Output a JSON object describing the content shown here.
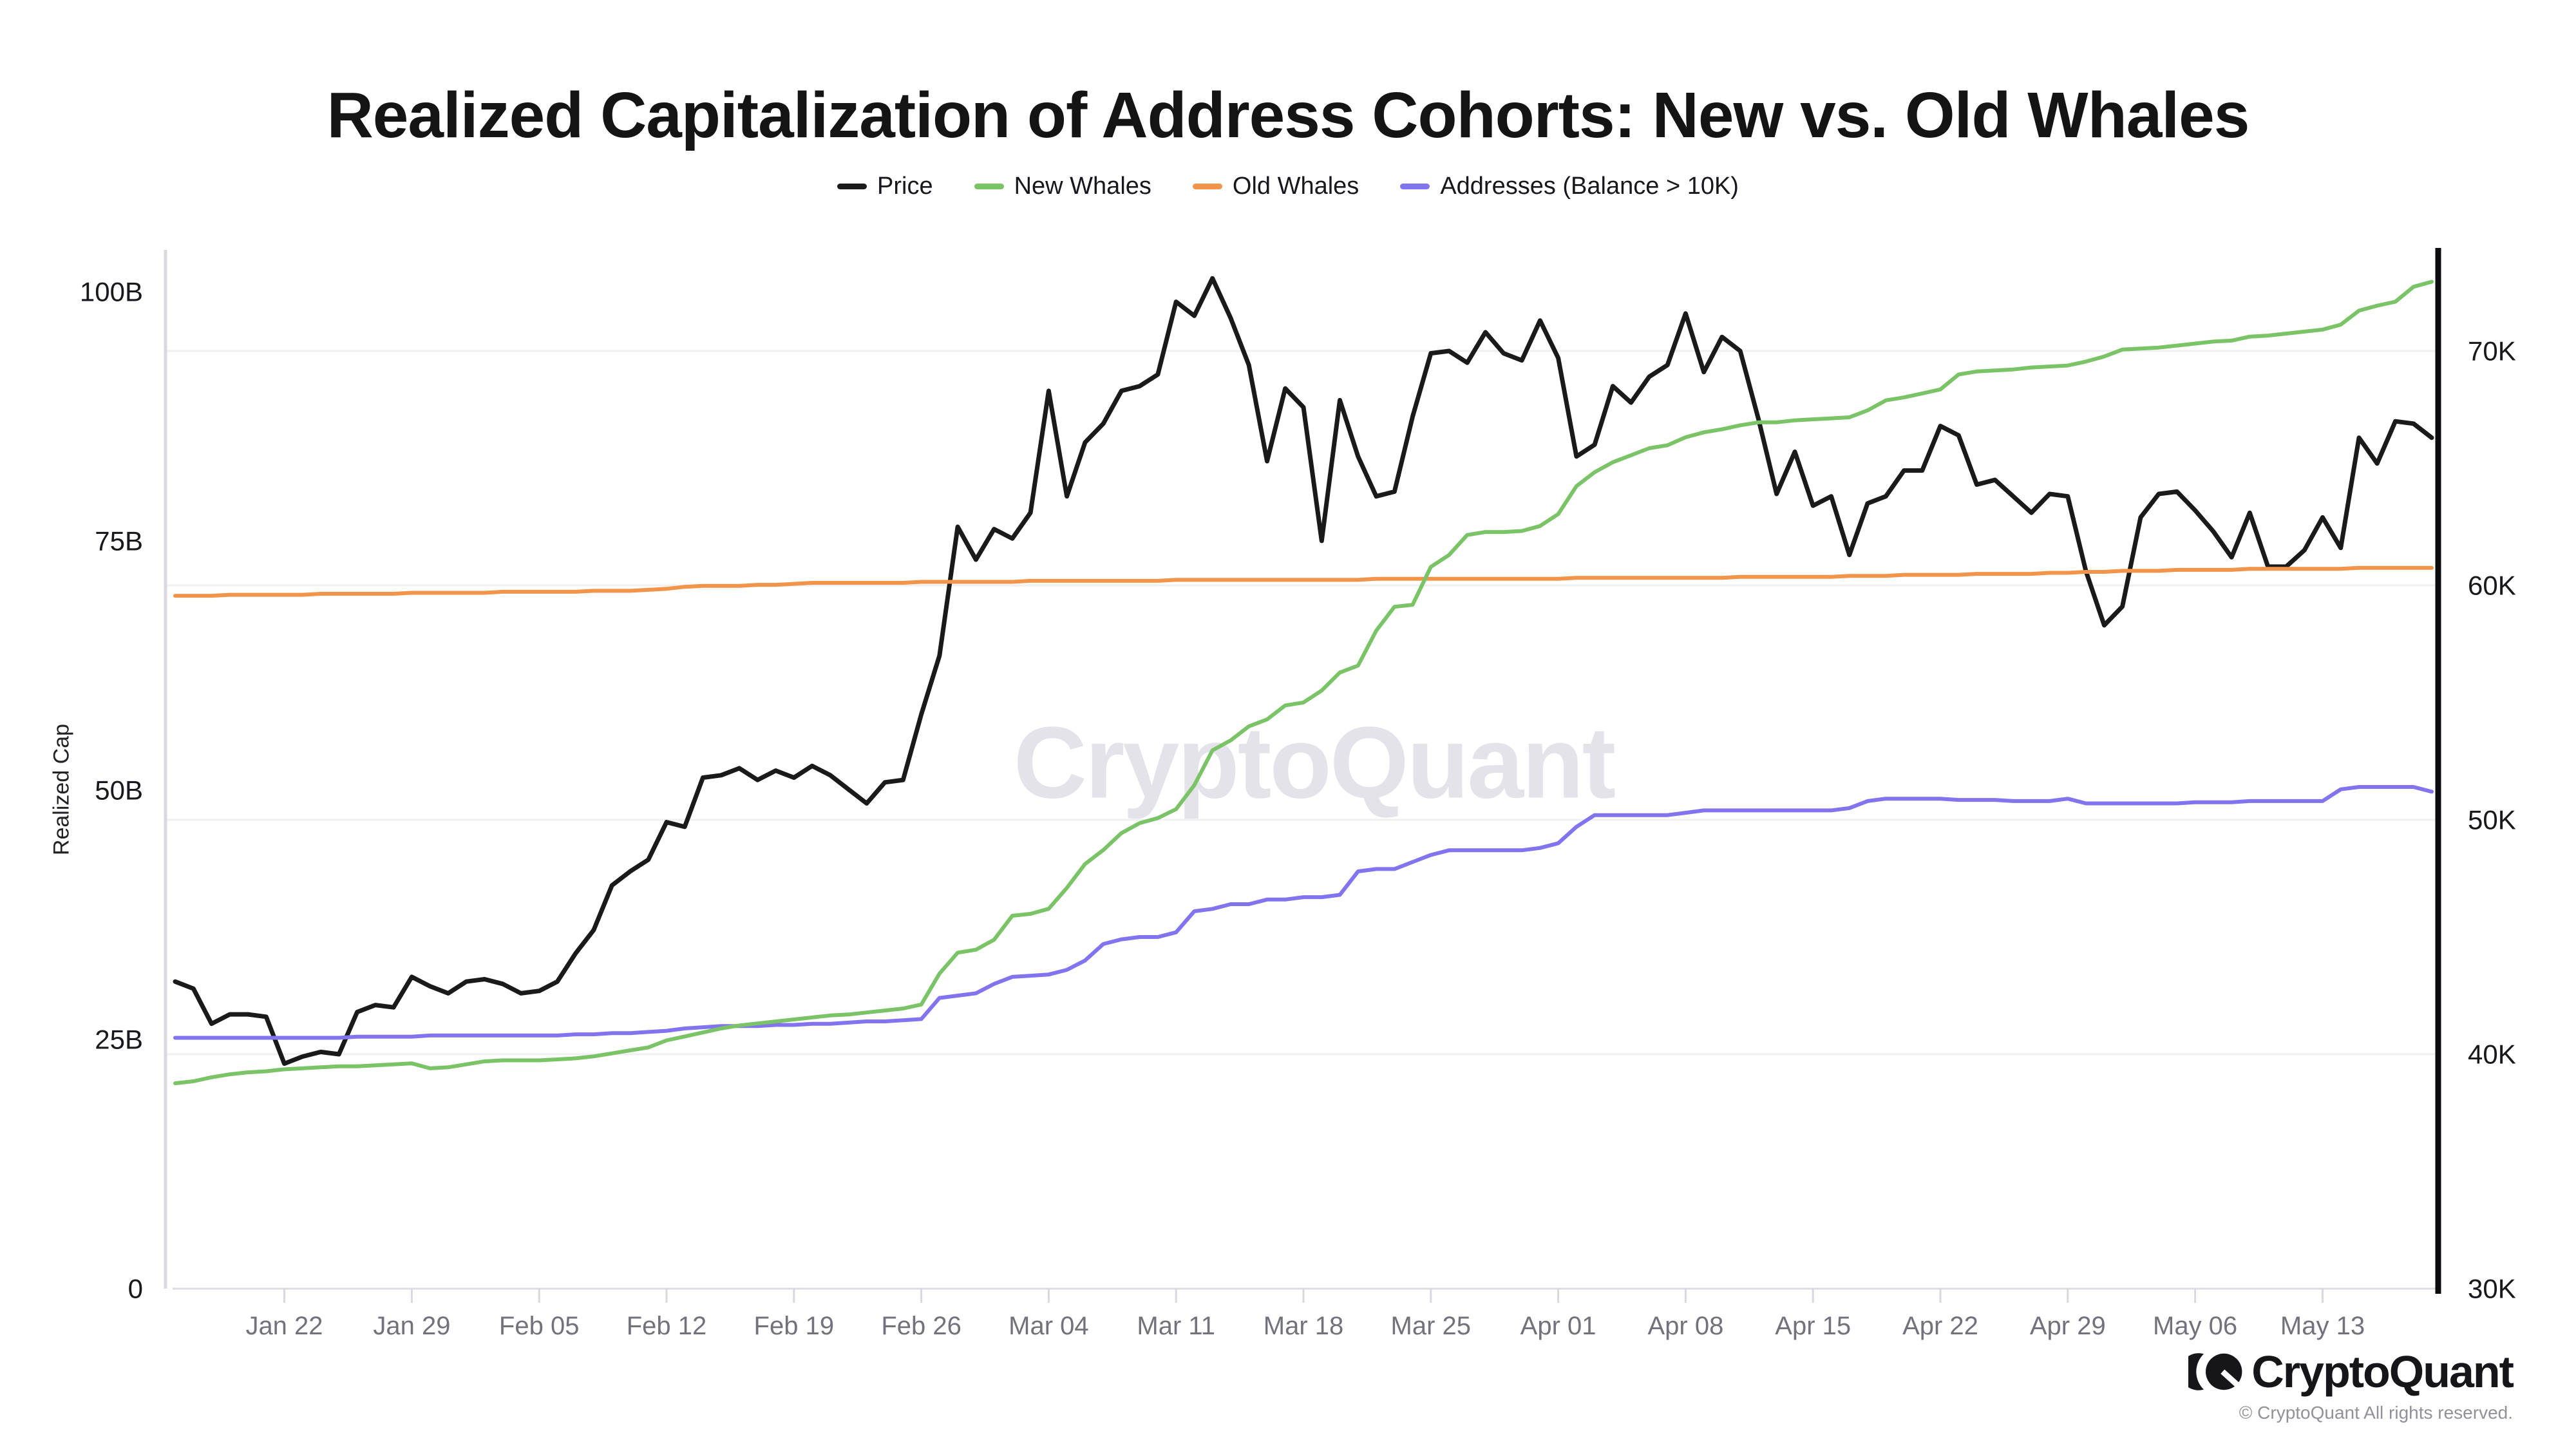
{
  "header": {
    "title": "Realized Capitalization of Address Cohorts: New vs. Old Whales"
  },
  "legend": {
    "items": [
      {
        "label": "Price",
        "color": "#1a1a1a"
      },
      {
        "label": "New Whales",
        "color": "#7ac467"
      },
      {
        "label": "Old Whales",
        "color": "#f2944a"
      },
      {
        "label": "Addresses (Balance > 10K)",
        "color": "#8273ee"
      }
    ]
  },
  "watermark": {
    "text": "CryptoQuant",
    "color": "#e3e3e9"
  },
  "footer": {
    "brand": "CryptoQuant",
    "copyright": "© CryptoQuant All rights reserved."
  },
  "chart_data": {
    "type": "line",
    "title": "Realized Capitalization of Address Cohorts: New vs. Old Whales",
    "ylabel_left": "Realized Cap",
    "x_start_date": "Jan 16",
    "x_end_date": "May 19",
    "grid": "horizontal-only",
    "legend_position": "top-center",
    "x_ticks": [
      {
        "index": 6,
        "label": "Jan 22"
      },
      {
        "index": 13,
        "label": "Jan 29"
      },
      {
        "index": 20,
        "label": "Feb 05"
      },
      {
        "index": 27,
        "label": "Feb 12"
      },
      {
        "index": 34,
        "label": "Feb 19"
      },
      {
        "index": 41,
        "label": "Feb 26"
      },
      {
        "index": 48,
        "label": "Mar 04"
      },
      {
        "index": 55,
        "label": "Mar 11"
      },
      {
        "index": 62,
        "label": "Mar 18"
      },
      {
        "index": 69,
        "label": "Mar 25"
      },
      {
        "index": 76,
        "label": "Apr 01"
      },
      {
        "index": 83,
        "label": "Apr 08"
      },
      {
        "index": 90,
        "label": "Apr 15"
      },
      {
        "index": 97,
        "label": "Apr 22"
      },
      {
        "index": 104,
        "label": "Apr 29"
      },
      {
        "index": 111,
        "label": "May 06"
      },
      {
        "index": 118,
        "label": "May 13"
      }
    ],
    "left_axis": {
      "min": 0,
      "max": 100,
      "unit": "B",
      "ticks": [
        {
          "value": 0,
          "label": "0"
        },
        {
          "value": 25,
          "label": "25B"
        },
        {
          "value": 50,
          "label": "50B"
        },
        {
          "value": 75,
          "label": "75B"
        },
        {
          "value": 100,
          "label": "100B"
        }
      ]
    },
    "right_axis": {
      "min": 30,
      "max": 70,
      "unit": "K",
      "ticks": [
        {
          "value": 30,
          "label": "30K"
        },
        {
          "value": 40,
          "label": "40K"
        },
        {
          "value": 50,
          "label": "50K"
        },
        {
          "value": 60,
          "label": "60K"
        },
        {
          "value": 70,
          "label": "70K"
        }
      ],
      "gridline_values": [
        40,
        50,
        60,
        70
      ]
    },
    "series": [
      {
        "name": "Price",
        "axis": "right",
        "color": "#1a1a1a",
        "width": 7,
        "values": [
          43.1,
          42.8,
          41.3,
          41.7,
          41.7,
          41.6,
          39.6,
          39.9,
          40.1,
          40.0,
          41.8,
          42.1,
          42.0,
          43.3,
          42.9,
          42.6,
          43.1,
          43.2,
          43.0,
          42.6,
          42.7,
          43.1,
          44.3,
          45.3,
          47.2,
          47.8,
          48.3,
          49.9,
          49.7,
          51.8,
          51.9,
          52.2,
          51.7,
          52.1,
          51.8,
          52.3,
          51.9,
          51.3,
          50.7,
          51.6,
          51.7,
          54.5,
          57.0,
          62.5,
          61.1,
          62.4,
          62.0,
          63.1,
          68.3,
          63.8,
          66.1,
          66.9,
          68.3,
          68.5,
          69.0,
          72.1,
          71.5,
          73.1,
          71.4,
          69.4,
          65.3,
          68.4,
          67.6,
          61.9,
          67.9,
          65.5,
          63.8,
          64.0,
          67.2,
          69.9,
          70.0,
          69.5,
          70.8,
          69.9,
          69.6,
          71.3,
          69.7,
          65.5,
          66.0,
          68.5,
          67.8,
          68.9,
          69.4,
          71.6,
          69.1,
          70.6,
          70.0,
          67.1,
          63.9,
          65.7,
          63.4,
          63.8,
          61.3,
          63.5,
          63.8,
          64.9,
          64.9,
          66.8,
          66.4,
          64.3,
          64.5,
          63.8,
          63.1,
          63.9,
          63.8,
          60.6,
          58.3,
          59.1,
          62.9,
          63.9,
          64.0,
          63.2,
          62.3,
          61.2,
          63.1,
          60.8,
          60.8,
          61.5,
          62.9,
          61.6,
          66.3,
          65.2,
          67.0,
          66.9,
          66.3
        ]
      },
      {
        "name": "Old Whales",
        "axis": "left",
        "color": "#f2944a",
        "width": 6,
        "values": [
          69.5,
          69.5,
          69.5,
          69.6,
          69.6,
          69.6,
          69.6,
          69.6,
          69.7,
          69.7,
          69.7,
          69.7,
          69.7,
          69.8,
          69.8,
          69.8,
          69.8,
          69.8,
          69.9,
          69.9,
          69.9,
          69.9,
          69.9,
          70.0,
          70.0,
          70.0,
          70.1,
          70.2,
          70.4,
          70.5,
          70.5,
          70.5,
          70.6,
          70.6,
          70.7,
          70.8,
          70.8,
          70.8,
          70.8,
          70.8,
          70.8,
          70.9,
          70.9,
          70.9,
          70.9,
          70.9,
          70.9,
          71.0,
          71.0,
          71.0,
          71.0,
          71.0,
          71.0,
          71.0,
          71.0,
          71.1,
          71.1,
          71.1,
          71.1,
          71.1,
          71.1,
          71.1,
          71.1,
          71.1,
          71.1,
          71.1,
          71.2,
          71.2,
          71.2,
          71.2,
          71.2,
          71.2,
          71.2,
          71.2,
          71.2,
          71.2,
          71.2,
          71.3,
          71.3,
          71.3,
          71.3,
          71.3,
          71.3,
          71.3,
          71.3,
          71.3,
          71.4,
          71.4,
          71.4,
          71.4,
          71.4,
          71.4,
          71.5,
          71.5,
          71.5,
          71.6,
          71.6,
          71.6,
          71.6,
          71.7,
          71.7,
          71.7,
          71.7,
          71.8,
          71.8,
          71.9,
          71.9,
          72.0,
          72.0,
          72.0,
          72.1,
          72.1,
          72.1,
          72.1,
          72.2,
          72.2,
          72.2,
          72.2,
          72.2,
          72.2,
          72.3,
          72.3,
          72.3,
          72.3,
          72.3
        ]
      },
      {
        "name": "Addresses (Balance > 10K)",
        "axis": "right",
        "color": "#8273ee",
        "width": 6,
        "values": [
          40.7,
          40.7,
          40.7,
          40.7,
          40.7,
          40.7,
          40.7,
          40.7,
          40.7,
          40.7,
          40.75,
          40.75,
          40.75,
          40.75,
          40.8,
          40.8,
          40.8,
          40.8,
          40.8,
          40.8,
          40.8,
          40.8,
          40.85,
          40.85,
          40.9,
          40.9,
          40.95,
          41.0,
          41.1,
          41.15,
          41.2,
          41.2,
          41.2,
          41.25,
          41.25,
          41.3,
          41.3,
          41.35,
          41.4,
          41.4,
          41.45,
          41.5,
          42.4,
          42.5,
          42.6,
          43.0,
          43.3,
          43.35,
          43.4,
          43.6,
          44.0,
          44.7,
          44.9,
          45.0,
          45.0,
          45.2,
          46.1,
          46.2,
          46.4,
          46.4,
          46.6,
          46.6,
          46.7,
          46.7,
          46.8,
          47.8,
          47.9,
          47.9,
          48.2,
          48.5,
          48.7,
          48.7,
          48.7,
          48.7,
          48.7,
          48.8,
          49.0,
          49.7,
          50.2,
          50.2,
          50.2,
          50.2,
          50.2,
          50.3,
          50.4,
          50.4,
          50.4,
          50.4,
          50.4,
          50.4,
          50.4,
          50.4,
          50.5,
          50.8,
          50.9,
          50.9,
          50.9,
          50.9,
          50.85,
          50.85,
          50.85,
          50.8,
          50.8,
          50.8,
          50.9,
          50.7,
          50.7,
          50.7,
          50.7,
          50.7,
          50.7,
          50.75,
          50.75,
          50.75,
          50.8,
          50.8,
          50.8,
          50.8,
          50.8,
          51.3,
          51.4,
          51.4,
          51.4,
          51.4,
          51.2
        ]
      },
      {
        "name": "New Whales",
        "axis": "left",
        "color": "#7ac467",
        "width": 6,
        "values": [
          20.6,
          20.8,
          21.2,
          21.5,
          21.7,
          21.8,
          22.0,
          22.1,
          22.2,
          22.3,
          22.3,
          22.4,
          22.5,
          22.6,
          22.1,
          22.2,
          22.5,
          22.8,
          22.9,
          22.9,
          22.9,
          23.0,
          23.1,
          23.3,
          23.6,
          23.9,
          24.2,
          24.9,
          25.3,
          25.7,
          26.1,
          26.4,
          26.6,
          26.8,
          27.0,
          27.2,
          27.4,
          27.5,
          27.7,
          27.9,
          28.1,
          28.5,
          31.6,
          33.7,
          34.0,
          35.0,
          37.4,
          37.6,
          38.1,
          40.2,
          42.6,
          44.0,
          45.7,
          46.7,
          47.2,
          48.1,
          50.5,
          54.0,
          55.0,
          56.4,
          57.1,
          58.5,
          58.8,
          60.0,
          61.8,
          62.5,
          66.0,
          68.4,
          68.6,
          72.4,
          73.6,
          75.6,
          75.9,
          75.9,
          76.0,
          76.5,
          77.7,
          80.5,
          81.9,
          82.9,
          83.6,
          84.3,
          84.6,
          85.4,
          85.9,
          86.2,
          86.6,
          86.9,
          86.9,
          87.1,
          87.2,
          87.3,
          87.4,
          88.1,
          89.1,
          89.4,
          89.8,
          90.2,
          91.7,
          92.0,
          92.1,
          92.2,
          92.4,
          92.5,
          92.6,
          93.0,
          93.5,
          94.2,
          94.3,
          94.4,
          94.6,
          94.8,
          95.0,
          95.1,
          95.5,
          95.6,
          95.8,
          96.0,
          96.2,
          96.7,
          98.1,
          98.6,
          99.0,
          100.5,
          101.0
        ]
      }
    ]
  }
}
